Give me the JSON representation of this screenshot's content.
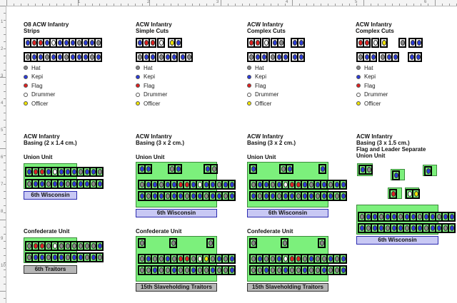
{
  "ruler_top_numbers": [
    "1",
    "2",
    "3",
    "4",
    "5",
    "6"
  ],
  "ruler_left_numbers": [
    "1",
    "2",
    "3",
    "4",
    "5",
    "6",
    "7",
    "8",
    "9",
    "10"
  ],
  "colors": {
    "hat": "#8a8a8a",
    "kepi": "#2a3ad8",
    "flag": "#e02020",
    "drummer": "#ffffff",
    "officer": "#f2e600",
    "base_green": "#7cf07c",
    "label_blue": "#c8c8f4",
    "label_gray": "#b6b6b6"
  },
  "columns": [
    {
      "title_line1": "O8 ACW Infantry",
      "title_line2": "Strips"
    },
    {
      "title_line1": "ACW Infantry",
      "title_line2": "Simple Cuts"
    },
    {
      "title_line1": "ACW Infantry",
      "title_line2": "Complex Cuts"
    },
    {
      "title_line1": "ACW Infantry",
      "title_line2": "Complex Cuts"
    }
  ],
  "legend": [
    "Hat",
    "Kepi",
    "Flag",
    "Drummer",
    "Officer"
  ],
  "basing": [
    {
      "line1": "ACW Infantry",
      "line2": "Basing (2 x 1.4 cm.)",
      "line3": "",
      "union": "Union Unit",
      "union_label": "6th Wisconsin",
      "confed": "Confederate Unit",
      "confed_label": "6th  Traitors"
    },
    {
      "line1": "ACW Infantry",
      "line2": "Basing (3 x 2 cm.)",
      "line3": "",
      "union": "Union Unit",
      "union_label": "6th Wisconsin",
      "confed": "Confederate Unit",
      "confed_label": "15th Slaveholding Traitors"
    },
    {
      "line1": "ACW Infantry",
      "line2": "Basing (3 x 2 cm.)",
      "line3": "",
      "union": "Union Unit",
      "union_label": "6th Wisconsin",
      "confed": "Confederate Unit",
      "confed_label": "15th Slaveholding Traitors"
    },
    {
      "line1": "ACW Infantry",
      "line2": "Basing (3 x 1.5 cm.)",
      "line3": "Flag and Leader Separate",
      "union": "Union Unit",
      "union_label": "6th Wisconsin",
      "confed": "",
      "confed_label": ""
    }
  ]
}
